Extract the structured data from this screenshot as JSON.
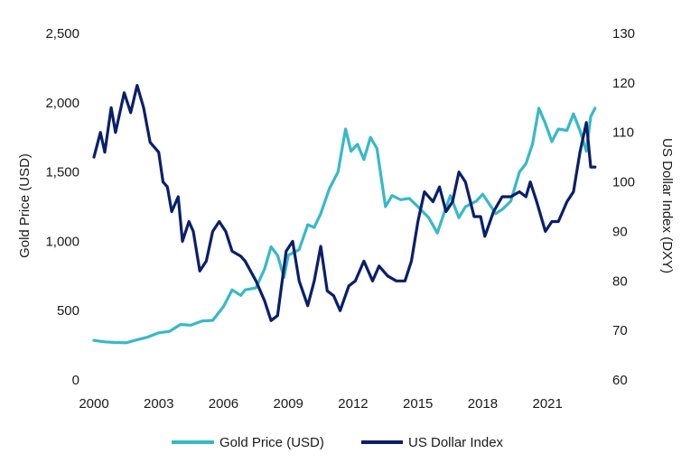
{
  "chart_data": {
    "type": "line",
    "title": "",
    "x_ticks": [
      "2000",
      "2003",
      "2006",
      "2009",
      "2012",
      "2015",
      "2018",
      "2021"
    ],
    "xlim": [
      2000,
      2023.25
    ],
    "y_left": {
      "label": "Gold Price (USD)",
      "lim": [
        0,
        2500
      ],
      "ticks": [
        "0",
        "500",
        "1,000",
        "1,500",
        "2,000",
        "2,500"
      ]
    },
    "y_right": {
      "label": "US Dollar Index (DXY)",
      "lim": [
        60,
        130
      ],
      "ticks": [
        "60",
        "70",
        "80",
        "90",
        "100",
        "110",
        "120",
        "130"
      ]
    },
    "legend": {
      "position": "bottom-center"
    },
    "series": [
      {
        "name": "Gold Price (USD)",
        "axis": "left",
        "color": "#36b9c9",
        "points": [
          [
            2000.0,
            285
          ],
          [
            2000.5,
            275
          ],
          [
            2001.0,
            270
          ],
          [
            2001.5,
            268
          ],
          [
            2002.0,
            290
          ],
          [
            2002.5,
            310
          ],
          [
            2003.0,
            340
          ],
          [
            2003.5,
            350
          ],
          [
            2004.0,
            400
          ],
          [
            2004.5,
            395
          ],
          [
            2005.0,
            425
          ],
          [
            2005.5,
            430
          ],
          [
            2006.0,
            530
          ],
          [
            2006.4,
            650
          ],
          [
            2006.8,
            610
          ],
          [
            2007.0,
            650
          ],
          [
            2007.5,
            665
          ],
          [
            2007.9,
            800
          ],
          [
            2008.2,
            960
          ],
          [
            2008.5,
            900
          ],
          [
            2008.8,
            740
          ],
          [
            2009.0,
            900
          ],
          [
            2009.5,
            940
          ],
          [
            2009.9,
            1120
          ],
          [
            2010.2,
            1100
          ],
          [
            2010.5,
            1200
          ],
          [
            2010.9,
            1380
          ],
          [
            2011.3,
            1500
          ],
          [
            2011.65,
            1810
          ],
          [
            2011.9,
            1650
          ],
          [
            2012.2,
            1700
          ],
          [
            2012.5,
            1590
          ],
          [
            2012.8,
            1750
          ],
          [
            2013.1,
            1670
          ],
          [
            2013.5,
            1250
          ],
          [
            2013.8,
            1330
          ],
          [
            2014.2,
            1300
          ],
          [
            2014.6,
            1310
          ],
          [
            2015.0,
            1250
          ],
          [
            2015.5,
            1170
          ],
          [
            2015.9,
            1060
          ],
          [
            2016.2,
            1200
          ],
          [
            2016.5,
            1330
          ],
          [
            2016.9,
            1170
          ],
          [
            2017.2,
            1250
          ],
          [
            2017.7,
            1290
          ],
          [
            2018.0,
            1340
          ],
          [
            2018.6,
            1200
          ],
          [
            2018.9,
            1230
          ],
          [
            2019.3,
            1290
          ],
          [
            2019.7,
            1500
          ],
          [
            2020.0,
            1560
          ],
          [
            2020.3,
            1700
          ],
          [
            2020.6,
            1960
          ],
          [
            2020.9,
            1850
          ],
          [
            2021.2,
            1720
          ],
          [
            2021.5,
            1810
          ],
          [
            2021.9,
            1800
          ],
          [
            2022.2,
            1920
          ],
          [
            2022.5,
            1800
          ],
          [
            2022.8,
            1650
          ],
          [
            2023.0,
            1900
          ],
          [
            2023.2,
            1960
          ]
        ]
      },
      {
        "name": "US Dollar Index",
        "axis": "right",
        "color": "#0a1f6b",
        "points": [
          [
            2000.0,
            105
          ],
          [
            2000.3,
            110
          ],
          [
            2000.5,
            106
          ],
          [
            2000.8,
            115
          ],
          [
            2001.0,
            110
          ],
          [
            2001.4,
            118
          ],
          [
            2001.7,
            114
          ],
          [
            2002.0,
            119.5
          ],
          [
            2002.3,
            115
          ],
          [
            2002.6,
            108
          ],
          [
            2003.0,
            106
          ],
          [
            2003.2,
            100
          ],
          [
            2003.4,
            99
          ],
          [
            2003.6,
            94
          ],
          [
            2003.9,
            97
          ],
          [
            2004.1,
            88
          ],
          [
            2004.4,
            92
          ],
          [
            2004.6,
            90
          ],
          [
            2004.9,
            82
          ],
          [
            2005.2,
            84
          ],
          [
            2005.5,
            90
          ],
          [
            2005.8,
            92
          ],
          [
            2006.1,
            90
          ],
          [
            2006.4,
            86
          ],
          [
            2006.8,
            85
          ],
          [
            2007.0,
            84
          ],
          [
            2007.5,
            80
          ],
          [
            2007.9,
            76
          ],
          [
            2008.2,
            72
          ],
          [
            2008.5,
            73
          ],
          [
            2008.9,
            86
          ],
          [
            2009.2,
            88
          ],
          [
            2009.5,
            80
          ],
          [
            2009.9,
            75
          ],
          [
            2010.2,
            80
          ],
          [
            2010.5,
            87
          ],
          [
            2010.8,
            78
          ],
          [
            2011.1,
            77
          ],
          [
            2011.4,
            74
          ],
          [
            2011.8,
            79
          ],
          [
            2012.1,
            80
          ],
          [
            2012.5,
            84
          ],
          [
            2012.9,
            80
          ],
          [
            2013.2,
            83
          ],
          [
            2013.6,
            81
          ],
          [
            2014.0,
            80
          ],
          [
            2014.4,
            80
          ],
          [
            2014.7,
            84
          ],
          [
            2015.0,
            92
          ],
          [
            2015.3,
            98
          ],
          [
            2015.7,
            96
          ],
          [
            2016.0,
            99
          ],
          [
            2016.3,
            94
          ],
          [
            2016.6,
            96
          ],
          [
            2016.9,
            102
          ],
          [
            2017.2,
            100
          ],
          [
            2017.6,
            93
          ],
          [
            2017.9,
            93
          ],
          [
            2018.1,
            89
          ],
          [
            2018.5,
            94
          ],
          [
            2018.9,
            97
          ],
          [
            2019.3,
            97
          ],
          [
            2019.7,
            98
          ],
          [
            2020.0,
            97
          ],
          [
            2020.2,
            100
          ],
          [
            2020.5,
            96
          ],
          [
            2020.9,
            90
          ],
          [
            2021.2,
            92
          ],
          [
            2021.5,
            92
          ],
          [
            2021.9,
            96
          ],
          [
            2022.2,
            98
          ],
          [
            2022.5,
            106
          ],
          [
            2022.8,
            112
          ],
          [
            2023.0,
            103
          ],
          [
            2023.2,
            103
          ]
        ]
      }
    ]
  }
}
